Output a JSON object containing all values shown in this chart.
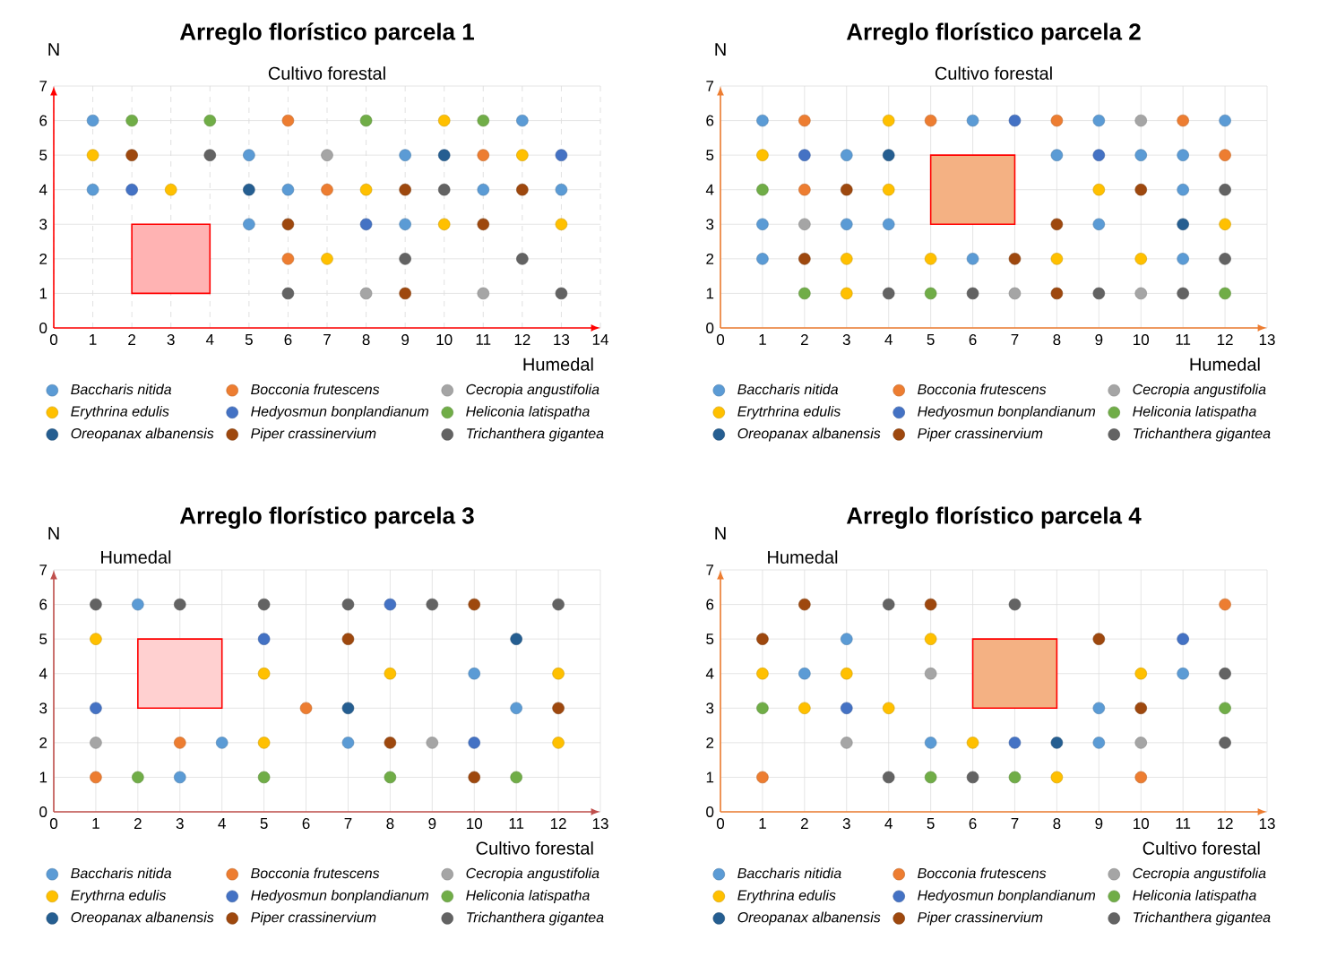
{
  "chart_data": [
    {
      "type": "scatter",
      "title": "Arreglo florístico parcela 1",
      "xlabel": "Humedal",
      "ylabel": "N",
      "annotations": [
        "Cultivo forestal"
      ],
      "xlim": [
        0,
        14
      ],
      "ylim": [
        0,
        7
      ],
      "xticks": [
        0,
        1,
        2,
        3,
        4,
        5,
        6,
        7,
        8,
        9,
        10,
        11,
        12,
        13,
        14
      ],
      "yticks": [
        0,
        1,
        2,
        3,
        4,
        5,
        6,
        7
      ],
      "grid": true,
      "legend": "bottom",
      "marker": "circle",
      "series": [
        {
          "name": "Baccharis nitida",
          "color": "#5b9bd5",
          "x": [
            1,
            12,
            5,
            9,
            1,
            6,
            11,
            13,
            5,
            9
          ],
          "values": [
            6,
            6,
            5,
            5,
            4,
            4,
            4,
            4,
            3,
            3
          ]
        },
        {
          "name": "Bocconia frutescens",
          "color": "#ed7d31",
          "x": [
            6,
            11,
            7,
            6
          ],
          "values": [
            6,
            5,
            4,
            2
          ]
        },
        {
          "name": "Cecropia angustifolia",
          "color": "#a5a5a5",
          "x": [
            7,
            8,
            11
          ],
          "values": [
            5,
            1,
            1
          ]
        },
        {
          "name": "Erythrina edulis",
          "color": "#ffc000",
          "x": [
            10,
            1,
            12,
            3,
            8,
            10,
            13,
            7
          ],
          "values": [
            6,
            5,
            5,
            4,
            4,
            3,
            3,
            2
          ]
        },
        {
          "name": "Hedyosmun bonplandianum",
          "color": "#4472c4",
          "x": [
            13,
            2,
            8
          ],
          "values": [
            5,
            4,
            3
          ]
        },
        {
          "name": "Heliconia latispatha",
          "color": "#70ad47",
          "x": [
            2,
            4,
            8,
            11
          ],
          "values": [
            6,
            6,
            6,
            6
          ]
        },
        {
          "name": "Oreopanax albanensis",
          "color": "#255e91",
          "x": [
            10,
            5
          ],
          "values": [
            5,
            4
          ]
        },
        {
          "name": "Piper crassinervium",
          "color": "#9e480e",
          "x": [
            2,
            9,
            12,
            6,
            11,
            9
          ],
          "values": [
            5,
            4,
            4,
            3,
            3,
            1
          ]
        },
        {
          "name": "Trichanthera gigantea",
          "color": "#636363",
          "x": [
            4,
            10,
            9,
            12,
            6,
            13
          ],
          "values": [
            5,
            4,
            2,
            2,
            1,
            1
          ]
        }
      ]
    },
    {
      "type": "scatter",
      "title": "Arreglo florístico parcela 2",
      "xlabel": "Humedal",
      "ylabel": "N",
      "annotations": [
        "Cultivo forestal"
      ],
      "xlim": [
        0,
        13
      ],
      "ylim": [
        0,
        7
      ],
      "xticks": [
        0,
        1,
        2,
        3,
        4,
        5,
        6,
        7,
        8,
        9,
        10,
        11,
        12,
        13
      ],
      "yticks": [
        0,
        1,
        2,
        3,
        4,
        5,
        6,
        7
      ],
      "grid": true,
      "legend": "bottom",
      "marker": "circle",
      "series": [
        {
          "name": "Baccharis nitida",
          "color": "#5b9bd5",
          "x": [
            1,
            6,
            9,
            12,
            3,
            8,
            10,
            11,
            11,
            1,
            3,
            4,
            9,
            1,
            6,
            11
          ],
          "values": [
            6,
            6,
            6,
            6,
            5,
            5,
            5,
            5,
            4,
            3,
            3,
            3,
            3,
            2,
            2,
            2
          ]
        },
        {
          "name": "Bocconia frutescens",
          "color": "#ed7d31",
          "x": [
            2,
            5,
            8,
            11,
            12,
            2
          ],
          "values": [
            6,
            6,
            6,
            6,
            5,
            4
          ]
        },
        {
          "name": "Cecropia angustifolia",
          "color": "#a5a5a5",
          "x": [
            10,
            2,
            7,
            10
          ],
          "values": [
            6,
            3,
            1,
            1
          ]
        },
        {
          "name": "Erytrhrina edulis",
          "color": "#ffc000",
          "x": [
            4,
            1,
            4,
            9,
            12,
            3,
            5,
            8,
            10,
            3
          ],
          "values": [
            6,
            5,
            4,
            4,
            3,
            2,
            2,
            2,
            2,
            1
          ]
        },
        {
          "name": "Hedyosmun bonplandianum",
          "color": "#4472c4",
          "x": [
            7,
            2,
            9
          ],
          "values": [
            6,
            5,
            5
          ]
        },
        {
          "name": "Heliconia latispatha",
          "color": "#70ad47",
          "x": [
            1,
            2,
            5,
            12
          ],
          "values": [
            4,
            1,
            1,
            1
          ]
        },
        {
          "name": "Oreopanax albanensis",
          "color": "#255e91",
          "x": [
            4,
            11
          ],
          "values": [
            5,
            3
          ]
        },
        {
          "name": "Piper crassinervium",
          "color": "#9e480e",
          "x": [
            3,
            10,
            8,
            2,
            7,
            8
          ],
          "values": [
            4,
            4,
            3,
            2,
            2,
            1
          ]
        },
        {
          "name": "Trichanthera gigantea",
          "color": "#636363",
          "x": [
            12,
            12,
            4,
            6,
            9,
            11
          ],
          "values": [
            4,
            2,
            1,
            1,
            1,
            1
          ]
        }
      ]
    },
    {
      "type": "scatter",
      "title": "Arreglo florístico parcela 3",
      "xlabel": "Cultivo forestal",
      "ylabel": "N",
      "annotations": [
        "Humedal"
      ],
      "xlim": [
        0,
        13
      ],
      "ylim": [
        0,
        7
      ],
      "xticks": [
        0,
        1,
        2,
        3,
        4,
        5,
        6,
        7,
        8,
        9,
        10,
        11,
        12,
        13
      ],
      "yticks": [
        0,
        1,
        2,
        3,
        4,
        5,
        6,
        7
      ],
      "grid": true,
      "legend": "bottom",
      "marker": "circle",
      "series": [
        {
          "name": "Baccharis nitida",
          "color": "#5b9bd5",
          "x": [
            2,
            10,
            11,
            4,
            7,
            3
          ],
          "values": [
            6,
            4,
            3,
            2,
            2,
            1
          ]
        },
        {
          "name": "Bocconia frutescens",
          "color": "#ed7d31",
          "x": [
            6,
            3,
            1
          ],
          "values": [
            3,
            2,
            1
          ]
        },
        {
          "name": "Cecropia angustifolia",
          "color": "#a5a5a5",
          "x": [
            1,
            9
          ],
          "values": [
            2,
            2
          ]
        },
        {
          "name": "Erythrna edulis",
          "color": "#ffc000",
          "x": [
            1,
            5,
            8,
            12,
            5,
            12
          ],
          "values": [
            5,
            4,
            4,
            4,
            2,
            2
          ]
        },
        {
          "name": "Hedyosmun bonplandianum",
          "color": "#4472c4",
          "x": [
            8,
            5,
            1,
            10
          ],
          "values": [
            6,
            5,
            3,
            2
          ]
        },
        {
          "name": "Heliconia latispatha",
          "color": "#70ad47",
          "x": [
            2,
            5,
            8,
            11
          ],
          "values": [
            1,
            1,
            1,
            1
          ]
        },
        {
          "name": "Oreopanax albanensis",
          "color": "#255e91",
          "x": [
            11,
            7
          ],
          "values": [
            5,
            3
          ]
        },
        {
          "name": "Piper crassinervium",
          "color": "#9e480e",
          "x": [
            10,
            7,
            12,
            8,
            10
          ],
          "values": [
            6,
            5,
            3,
            2,
            1
          ]
        },
        {
          "name": "Trichanthera gigantea",
          "color": "#636363",
          "x": [
            1,
            3,
            5,
            7,
            9,
            12
          ],
          "values": [
            6,
            6,
            6,
            6,
            6,
            6
          ]
        }
      ]
    },
    {
      "type": "scatter",
      "title": "Arreglo florístico parcela 4",
      "xlabel": "Cultivo forestal",
      "ylabel": "N",
      "annotations": [
        "Humedal"
      ],
      "xlim": [
        0,
        13
      ],
      "ylim": [
        0,
        7
      ],
      "xticks": [
        0,
        1,
        2,
        3,
        4,
        5,
        6,
        7,
        8,
        9,
        10,
        11,
        12,
        13
      ],
      "yticks": [
        0,
        1,
        2,
        3,
        4,
        5,
        6,
        7
      ],
      "grid": true,
      "legend": "bottom",
      "marker": "circle",
      "series": [
        {
          "name": "Baccharis nitidia",
          "color": "#5b9bd5",
          "x": [
            3,
            2,
            11,
            9,
            5,
            9
          ],
          "values": [
            5,
            4,
            4,
            3,
            2,
            2
          ]
        },
        {
          "name": "Bocconia frutescens",
          "color": "#ed7d31",
          "x": [
            12,
            1,
            10
          ],
          "values": [
            6,
            1,
            1
          ]
        },
        {
          "name": "Cecropia angustifolia",
          "color": "#a5a5a5",
          "x": [
            5,
            3,
            10
          ],
          "values": [
            4,
            2,
            2
          ]
        },
        {
          "name": "Erythrina edulis",
          "color": "#ffc000",
          "x": [
            5,
            1,
            3,
            10,
            2,
            4,
            6,
            8
          ],
          "values": [
            5,
            4,
            4,
            4,
            3,
            3,
            2,
            1
          ]
        },
        {
          "name": "Hedyosmun bonplandianum",
          "color": "#4472c4",
          "x": [
            11,
            3,
            7
          ],
          "values": [
            5,
            3,
            2
          ]
        },
        {
          "name": "Heliconia latispatha",
          "color": "#70ad47",
          "x": [
            1,
            12,
            5,
            7
          ],
          "values": [
            3,
            3,
            1,
            1
          ]
        },
        {
          "name": "Oreopanax albanensis",
          "color": "#255e91",
          "x": [
            8
          ],
          "values": [
            2
          ]
        },
        {
          "name": "Piper crassinervium",
          "color": "#9e480e",
          "x": [
            2,
            5,
            1,
            9,
            10
          ],
          "values": [
            6,
            6,
            5,
            5,
            3
          ]
        },
        {
          "name": "Trichanthera gigantea",
          "color": "#636363",
          "x": [
            4,
            7,
            12,
            12,
            4,
            6
          ],
          "values": [
            6,
            6,
            4,
            2,
            1,
            1
          ]
        }
      ]
    }
  ]
}
